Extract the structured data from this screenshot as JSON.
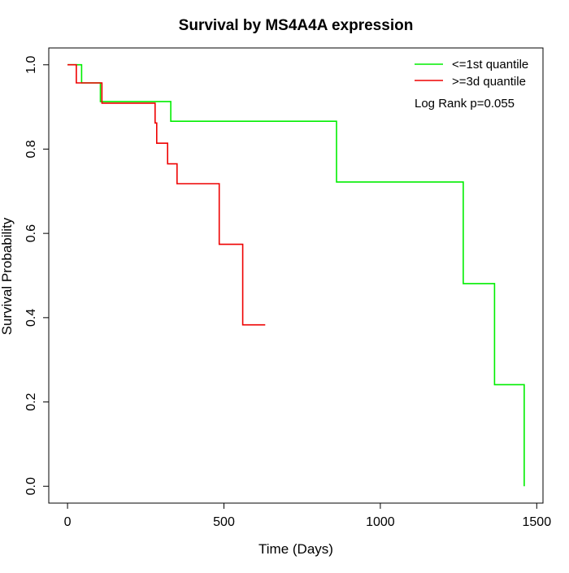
{
  "chart_data": {
    "type": "line",
    "step": true,
    "title": "Survival by MS4A4A expression",
    "xlabel": "Time (Days)",
    "ylabel": "Survival Probability",
    "xlim": [
      -60,
      1520
    ],
    "ylim": [
      -0.04,
      1.04
    ],
    "xticks": [
      0,
      500,
      1000,
      1500
    ],
    "yticks": [
      0.0,
      0.2,
      0.4,
      0.6,
      0.8,
      1.0
    ],
    "xtick_labels": [
      "0",
      "500",
      "1000",
      "1500"
    ],
    "ytick_labels": [
      "0.0",
      "0.2",
      "0.4",
      "0.6",
      "0.8",
      "1.0"
    ],
    "grid": false,
    "legend_position": "top-right",
    "annotation": "Log Rank p=0.055",
    "series": [
      {
        "name": "<=1st quantile",
        "color": "#00ee00",
        "x": [
          0,
          45,
          45,
          105,
          105,
          330,
          330,
          860,
          860,
          1265,
          1265,
          1365,
          1365,
          1460,
          1460
        ],
        "y": [
          1.0,
          1.0,
          0.957,
          0.957,
          0.913,
          0.913,
          0.866,
          0.866,
          0.722,
          0.722,
          0.481,
          0.481,
          0.241,
          0.241,
          0.0
        ]
      },
      {
        "name": ">=3d quantile",
        "color": "#ee0000",
        "x": [
          0,
          28,
          28,
          110,
          110,
          280,
          280,
          285,
          285,
          320,
          320,
          350,
          350,
          485,
          485,
          560,
          560,
          632
        ],
        "y": [
          1.0,
          1.0,
          0.957,
          0.957,
          0.909,
          0.909,
          0.862,
          0.862,
          0.814,
          0.814,
          0.765,
          0.765,
          0.718,
          0.718,
          0.574,
          0.574,
          0.383,
          0.383
        ]
      }
    ]
  }
}
